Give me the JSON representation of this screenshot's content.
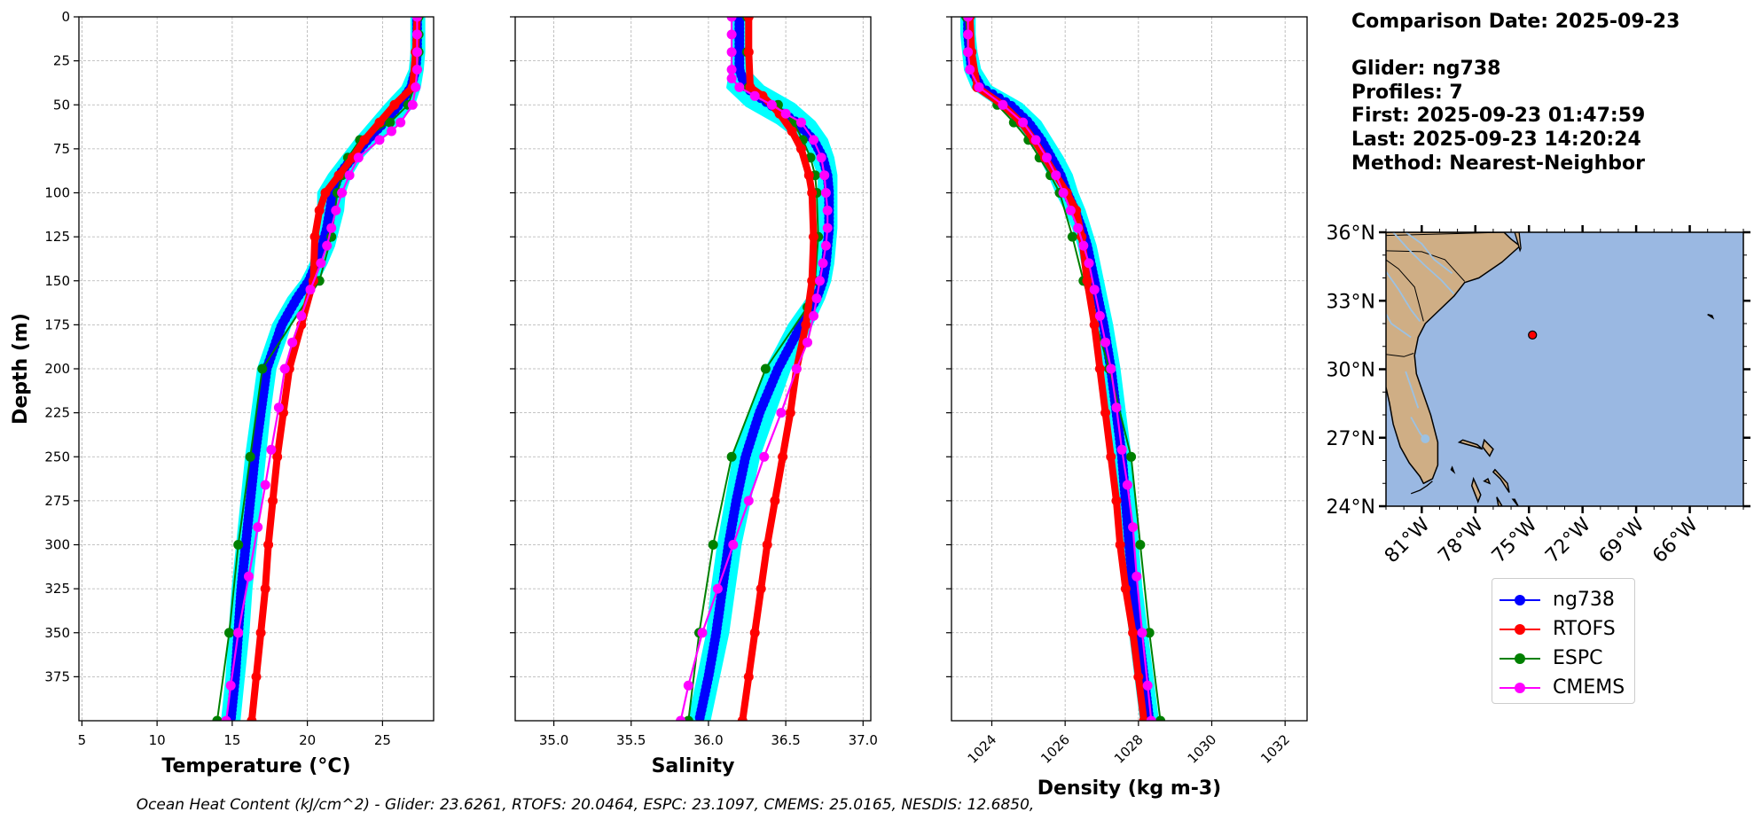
{
  "info": {
    "comparison_date": "Comparison Date: 2025-09-23",
    "glider": "Glider: ng738",
    "profiles": "Profiles: 7",
    "first": "First: 2025-09-23 01:47:59",
    "last": "Last: 2025-09-23 14:20:24",
    "method": "Method: Nearest-Neighbor"
  },
  "footer": "Ocean Heat Content (kJ/cm^2) - Glider: 23.6261,  RTOFS: 20.0464,  ESPC: 23.1097,  CMEMS: 25.0165,  NESDIS: 12.6850,",
  "colors": {
    "ng738": "#0000ff",
    "rtofs": "#ff0000",
    "espc": "#008000",
    "cmems": "#ff00ff",
    "glider_range": "#00ffff",
    "land": "#cfae85",
    "ocean": "#9ab8e2",
    "rivers": "#9cc1e2"
  },
  "legend": [
    {
      "label": "ng738",
      "color": "#0000ff"
    },
    {
      "label": "RTOFS",
      "color": "#ff0000"
    },
    {
      "label": "ESPC",
      "color": "#008000"
    },
    {
      "label": "CMEMS",
      "color": "#ff00ff"
    }
  ],
  "map": {
    "lon_range": [
      -83,
      -63
    ],
    "lat_range": [
      24,
      36
    ],
    "lat_ticks": [
      {
        "v": 36,
        "label": "36°N"
      },
      {
        "v": 33,
        "label": "33°N"
      },
      {
        "v": 30,
        "label": "30°N"
      },
      {
        "v": 27,
        "label": "27°N"
      },
      {
        "v": 24,
        "label": "24°N"
      }
    ],
    "lon_ticks": [
      {
        "v": -81,
        "label": "81°W"
      },
      {
        "v": -78,
        "label": "78°W"
      },
      {
        "v": -75,
        "label": "75°W"
      },
      {
        "v": -72,
        "label": "72°W"
      },
      {
        "v": -69,
        "label": "69°W"
      },
      {
        "v": -66,
        "label": "66°W"
      }
    ],
    "glider_position": {
      "lon": -74.8,
      "lat": 31.5
    }
  },
  "chart_data": [
    {
      "type": "line",
      "xlabel": "Temperature (°C)",
      "ylabel": "Depth (m)",
      "xlim": [
        4.8,
        28.4
      ],
      "ylim": [
        400,
        0
      ],
      "x_ticks": [
        5,
        10,
        15,
        20,
        25
      ],
      "y_ticks": [
        0,
        25,
        50,
        75,
        100,
        125,
        150,
        175,
        200,
        225,
        250,
        275,
        300,
        325,
        350,
        375
      ],
      "grid": true,
      "glider_range": {
        "depth": [
          0,
          10,
          20,
          30,
          40,
          50,
          60,
          70,
          80,
          90,
          100,
          110,
          120,
          130,
          140,
          150,
          160,
          175,
          200,
          225,
          250,
          275,
          300,
          325,
          350,
          375,
          400
        ],
        "min": [
          27.0,
          27.0,
          27.0,
          26.9,
          26.4,
          25.3,
          24.3,
          23.3,
          22.4,
          21.5,
          20.8,
          20.8,
          20.8,
          20.6,
          20.3,
          19.7,
          18.8,
          17.8,
          16.8,
          16.4,
          16.0,
          15.7,
          15.4,
          15.1,
          14.9,
          14.7,
          14.4
        ],
        "max": [
          27.7,
          27.7,
          27.7,
          27.6,
          27.4,
          27.0,
          25.9,
          24.6,
          23.5,
          22.8,
          22.4,
          22.3,
          22.0,
          21.7,
          21.2,
          20.6,
          19.8,
          18.8,
          17.8,
          17.4,
          17.1,
          16.8,
          16.5,
          16.2,
          16.0,
          15.7,
          15.4
        ]
      },
      "series": [
        {
          "name": "ng738",
          "depth": [
            0,
            10,
            20,
            30,
            40,
            50,
            60,
            70,
            80,
            90,
            100,
            110,
            120,
            130,
            140,
            150,
            160,
            175,
            200,
            225,
            250,
            275,
            300,
            325,
            350,
            375,
            400
          ],
          "values": [
            27.3,
            27.3,
            27.3,
            27.2,
            26.9,
            26.1,
            25.1,
            24.0,
            23.0,
            22.1,
            21.7,
            21.5,
            21.3,
            21.0,
            20.6,
            20.1,
            19.3,
            18.3,
            17.3,
            16.9,
            16.5,
            16.2,
            15.9,
            15.6,
            15.4,
            15.2,
            14.9
          ]
        },
        {
          "name": "RTOFS",
          "depth": [
            0,
            20,
            40,
            50,
            60,
            70,
            80,
            90,
            100,
            110,
            125,
            150,
            175,
            200,
            225,
            250,
            275,
            300,
            325,
            350,
            375,
            400
          ],
          "values": [
            27.3,
            27.2,
            27.0,
            25.8,
            24.8,
            23.8,
            23.0,
            22.1,
            21.2,
            20.8,
            20.5,
            20.4,
            19.6,
            18.8,
            18.4,
            18.0,
            17.7,
            17.4,
            17.2,
            16.9,
            16.6,
            16.3
          ]
        },
        {
          "name": "ESPC",
          "depth": [
            0,
            10,
            20,
            30,
            40,
            50,
            60,
            70,
            80,
            90,
            100,
            125,
            150,
            200,
            250,
            300,
            350,
            400
          ],
          "values": [
            27.4,
            27.4,
            27.4,
            27.3,
            27.1,
            26.7,
            25.5,
            23.5,
            22.7,
            22.3,
            22.0,
            21.6,
            20.8,
            17.0,
            16.2,
            15.4,
            14.8,
            14.0
          ]
        },
        {
          "name": "CMEMS",
          "depth": [
            0,
            10,
            20,
            30,
            40,
            50,
            60,
            65,
            70,
            80,
            90,
            100,
            110,
            120,
            130,
            140,
            155,
            170,
            185,
            200,
            222,
            246,
            266,
            290,
            318,
            350,
            380,
            400
          ],
          "values": [
            27.3,
            27.3,
            27.3,
            27.3,
            27.2,
            27.0,
            26.2,
            25.6,
            24.8,
            23.4,
            22.8,
            22.3,
            21.9,
            21.6,
            21.3,
            20.9,
            20.2,
            19.6,
            19.0,
            18.5,
            18.1,
            17.6,
            17.2,
            16.7,
            16.1,
            15.4,
            14.9,
            14.6
          ]
        }
      ]
    },
    {
      "type": "line",
      "xlabel": "Salinity",
      "ylabel": "",
      "xlim": [
        34.75,
        37.05
      ],
      "ylim": [
        400,
        0
      ],
      "x_ticks": [
        35.0,
        35.5,
        36.0,
        36.5,
        37.0
      ],
      "y_ticks": [
        0,
        25,
        50,
        75,
        100,
        125,
        150,
        175,
        200,
        225,
        250,
        275,
        300,
        325,
        350,
        375
      ],
      "grid": true,
      "glider_range": {
        "depth": [
          0,
          10,
          20,
          30,
          40,
          50,
          60,
          70,
          80,
          90,
          100,
          110,
          120,
          130,
          140,
          150,
          160,
          175,
          200,
          225,
          250,
          275,
          300,
          325,
          350,
          375,
          400
        ],
        "min": [
          36.17,
          36.17,
          36.17,
          36.15,
          36.13,
          36.25,
          36.45,
          36.6,
          36.68,
          36.72,
          36.72,
          36.72,
          36.72,
          36.72,
          36.71,
          36.69,
          36.65,
          36.53,
          36.38,
          36.27,
          36.17,
          36.12,
          36.07,
          36.03,
          36.0,
          35.94,
          35.88
        ],
        "max": [
          36.23,
          36.23,
          36.23,
          36.24,
          36.35,
          36.55,
          36.68,
          36.76,
          36.8,
          36.82,
          36.82,
          36.82,
          36.82,
          36.81,
          36.8,
          36.78,
          36.74,
          36.66,
          36.52,
          36.42,
          36.32,
          36.26,
          36.2,
          36.16,
          36.12,
          36.06,
          36.0
        ]
      },
      "series": [
        {
          "name": "ng738",
          "depth": [
            0,
            10,
            20,
            30,
            40,
            50,
            60,
            70,
            80,
            90,
            100,
            110,
            120,
            130,
            140,
            150,
            160,
            175,
            200,
            225,
            250,
            275,
            300,
            325,
            350,
            375,
            400
          ],
          "values": [
            36.2,
            36.2,
            36.2,
            36.2,
            36.24,
            36.4,
            36.57,
            36.68,
            36.74,
            36.77,
            36.78,
            36.78,
            36.78,
            36.77,
            36.76,
            36.74,
            36.7,
            36.6,
            36.45,
            36.33,
            36.24,
            36.18,
            36.13,
            36.09,
            36.05,
            36.0,
            35.94
          ]
        },
        {
          "name": "RTOFS",
          "depth": [
            0,
            20,
            40,
            45,
            55,
            65,
            75,
            90,
            100,
            125,
            150,
            175,
            200,
            225,
            250,
            275,
            300,
            325,
            350,
            375,
            400
          ],
          "values": [
            36.26,
            36.26,
            36.27,
            36.35,
            36.46,
            36.54,
            36.6,
            36.65,
            36.67,
            36.68,
            36.67,
            36.63,
            36.57,
            36.53,
            36.48,
            36.43,
            36.38,
            36.34,
            36.3,
            36.26,
            36.22
          ]
        },
        {
          "name": "ESPC",
          "depth": [
            0,
            20,
            40,
            50,
            60,
            70,
            80,
            90,
            100,
            125,
            150,
            165,
            200,
            250,
            300,
            350,
            400
          ],
          "values": [
            36.25,
            36.25,
            36.26,
            36.45,
            36.55,
            36.61,
            36.66,
            36.69,
            36.7,
            36.71,
            36.69,
            36.64,
            36.37,
            36.15,
            36.03,
            35.94,
            35.87
          ]
        },
        {
          "name": "CMEMS",
          "depth": [
            0,
            10,
            20,
            30,
            35,
            40,
            45,
            50,
            55,
            60,
            70,
            80,
            90,
            100,
            110,
            120,
            130,
            140,
            150,
            160,
            170,
            185,
            200,
            225,
            250,
            275,
            300,
            325,
            350,
            380,
            400
          ],
          "values": [
            36.15,
            36.15,
            36.15,
            36.15,
            36.15,
            36.2,
            36.3,
            36.41,
            36.5,
            36.6,
            36.68,
            36.73,
            36.75,
            36.76,
            36.77,
            36.77,
            36.76,
            36.74,
            36.72,
            36.7,
            36.68,
            36.64,
            36.57,
            36.47,
            36.36,
            36.26,
            36.16,
            36.06,
            35.96,
            35.87,
            35.82
          ]
        }
      ]
    },
    {
      "type": "line",
      "xlabel": "Density (kg m-3)",
      "ylabel": "",
      "xlim": [
        1022.9,
        1032.6
      ],
      "ylim": [
        400,
        0
      ],
      "x_ticks": [
        1024,
        1026,
        1028,
        1030,
        1032
      ],
      "y_ticks": [
        0,
        25,
        50,
        75,
        100,
        125,
        150,
        175,
        200,
        225,
        250,
        275,
        300,
        325,
        350,
        375
      ],
      "grid": true,
      "glider_range": {
        "depth": [
          0,
          10,
          20,
          30,
          40,
          50,
          60,
          70,
          80,
          90,
          100,
          110,
          120,
          130,
          140,
          150,
          160,
          175,
          200,
          225,
          250,
          275,
          300,
          325,
          350,
          375,
          400
        ],
        "min": [
          1023.2,
          1023.2,
          1023.25,
          1023.3,
          1023.5,
          1024.2,
          1024.7,
          1025.1,
          1025.35,
          1025.6,
          1025.8,
          1026.05,
          1026.25,
          1026.4,
          1026.5,
          1026.6,
          1026.7,
          1026.85,
          1027.05,
          1027.2,
          1027.35,
          1027.45,
          1027.55,
          1027.65,
          1027.8,
          1027.95,
          1028.1
        ],
        "max": [
          1023.5,
          1023.5,
          1023.55,
          1023.65,
          1023.95,
          1024.8,
          1025.3,
          1025.6,
          1025.9,
          1026.15,
          1026.3,
          1026.5,
          1026.65,
          1026.8,
          1026.9,
          1027.0,
          1027.1,
          1027.25,
          1027.45,
          1027.6,
          1027.75,
          1027.85,
          1027.95,
          1028.05,
          1028.2,
          1028.35,
          1028.5
        ]
      },
      "series": [
        {
          "name": "ng738",
          "depth": [
            0,
            10,
            20,
            30,
            40,
            50,
            60,
            70,
            80,
            90,
            100,
            110,
            120,
            130,
            140,
            150,
            160,
            175,
            200,
            225,
            250,
            275,
            300,
            325,
            350,
            375,
            400
          ],
          "values": [
            1023.35,
            1023.35,
            1023.4,
            1023.45,
            1023.7,
            1024.5,
            1025.0,
            1025.35,
            1025.62,
            1025.88,
            1026.05,
            1026.27,
            1026.45,
            1026.6,
            1026.7,
            1026.8,
            1026.9,
            1027.05,
            1027.25,
            1027.4,
            1027.55,
            1027.65,
            1027.75,
            1027.85,
            1028.0,
            1028.15,
            1028.3
          ]
        },
        {
          "name": "RTOFS",
          "depth": [
            0,
            20,
            40,
            50,
            60,
            70,
            80,
            90,
            100,
            110,
            125,
            150,
            175,
            200,
            225,
            250,
            275,
            300,
            325,
            350,
            375,
            400
          ],
          "values": [
            1023.4,
            1023.45,
            1023.6,
            1024.3,
            1024.8,
            1025.15,
            1025.45,
            1025.75,
            1026.05,
            1026.3,
            1026.45,
            1026.6,
            1026.8,
            1026.95,
            1027.1,
            1027.25,
            1027.4,
            1027.5,
            1027.65,
            1027.85,
            1028.0,
            1028.15
          ]
        },
        {
          "name": "ESPC",
          "depth": [
            0,
            20,
            40,
            50,
            60,
            70,
            80,
            90,
            100,
            125,
            150,
            200,
            250,
            300,
            350,
            400
          ],
          "values": [
            1023.3,
            1023.35,
            1023.6,
            1024.15,
            1024.6,
            1025.0,
            1025.3,
            1025.6,
            1025.85,
            1026.2,
            1026.5,
            1027.2,
            1027.8,
            1028.05,
            1028.3,
            1028.6
          ]
        },
        {
          "name": "CMEMS",
          "depth": [
            0,
            10,
            20,
            30,
            40,
            50,
            60,
            70,
            80,
            90,
            100,
            110,
            120,
            130,
            140,
            155,
            170,
            185,
            200,
            222,
            246,
            266,
            290,
            318,
            350,
            380,
            400
          ],
          "values": [
            1023.35,
            1023.35,
            1023.35,
            1023.4,
            1023.65,
            1024.3,
            1024.85,
            1025.2,
            1025.5,
            1025.75,
            1025.95,
            1026.15,
            1026.35,
            1026.5,
            1026.65,
            1026.8,
            1026.95,
            1027.1,
            1027.25,
            1027.4,
            1027.55,
            1027.7,
            1027.85,
            1027.95,
            1028.1,
            1028.25,
            1028.35
          ]
        }
      ]
    }
  ]
}
